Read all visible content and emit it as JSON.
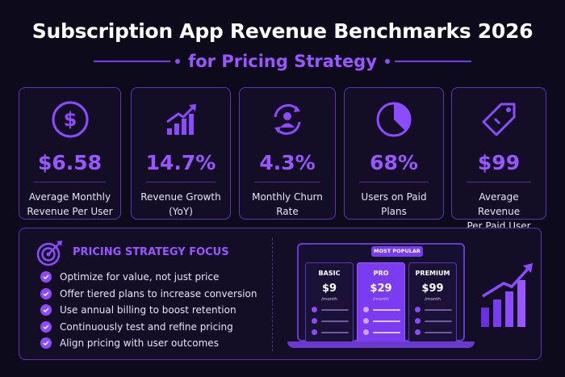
{
  "header": {
    "title": "Subscription App Revenue Benchmarks 2026",
    "subtitle": "for Pricing Strategy"
  },
  "colors": {
    "background": "#0d0a1c",
    "accent": "#9a57ff",
    "border": "#5d34b8"
  },
  "cards": [
    {
      "icon": "dollar-icon",
      "value": "$6.58",
      "label_line1": "Average Monthly",
      "label_line2": "Revenue Per User"
    },
    {
      "icon": "growth-chart-icon",
      "value": "14.7%",
      "label_line1": "Revenue Growth",
      "label_line2": "(YoY)"
    },
    {
      "icon": "user-churn-icon",
      "value": "4.3%",
      "label_line1": "Monthly Churn",
      "label_line2": "Rate"
    },
    {
      "icon": "pie-chart-icon",
      "value": "68%",
      "label_line1": "Users on Paid",
      "label_line2": "Plans"
    },
    {
      "icon": "price-tag-icon",
      "value": "$99",
      "label_line1": "Average Revenue",
      "label_line2": "Per Paid User"
    }
  ],
  "focus": {
    "title": "PRICING STRATEGY FOCUS",
    "items": [
      "Optimize for value, not just price",
      "Offer tiered plans to increase conversion",
      "Use annual billing to boost retention",
      "Continuously test and refine pricing",
      "Align pricing with user outcomes"
    ]
  },
  "pricing": {
    "badge": "MOST POPULAR",
    "plans": [
      {
        "name": "BASIC",
        "price": "$9",
        "period": "/month"
      },
      {
        "name": "PRO",
        "price": "$29",
        "period": "/month"
      },
      {
        "name": "PREMIUM",
        "price": "$99",
        "period": "/month"
      }
    ]
  }
}
